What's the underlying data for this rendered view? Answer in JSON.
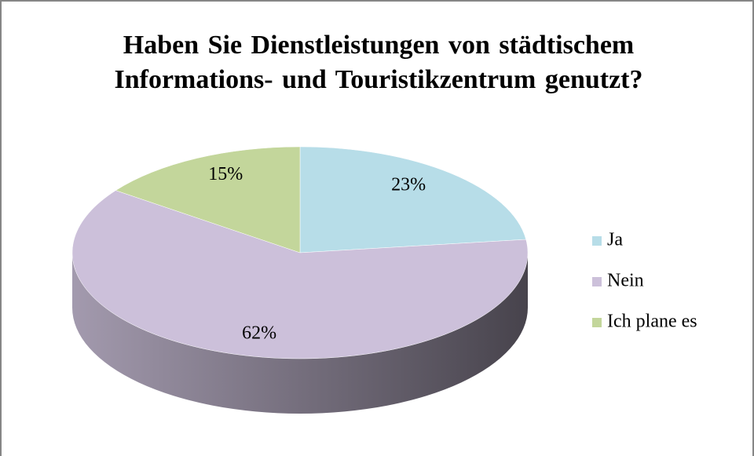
{
  "chart_data": {
    "type": "pie3d",
    "title": "Haben Sie Dienstleistungen von städtischem Informations- und Touristikzentrum genutzt?",
    "categories": [
      "Ja",
      "Nein",
      "Ich plane es"
    ],
    "values": [
      23,
      62,
      15
    ],
    "value_labels": [
      "23%",
      "62%",
      "15%"
    ],
    "colors": [
      "#b7dde8",
      "#ccc0da",
      "#c3d69b"
    ],
    "legend": "right"
  }
}
